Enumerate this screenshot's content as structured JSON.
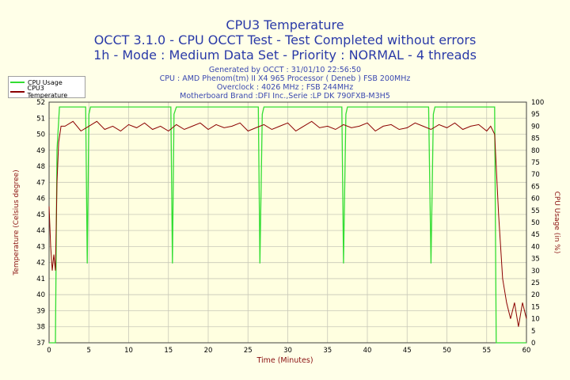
{
  "header": {
    "title": "CPU3 Temperature",
    "line2": "OCCT 3.1.0 - CPU OCCT Test - Test Completed without errors",
    "line3": "1h - Mode : Medium Data Set - Priority : NORMAL - 4 threads",
    "info": [
      "Generated by OCCT : 31/01/10 22:56:50",
      "CPU : AMD Phenom(tm) II X4 965 Processor ( Deneb ) FSB 200MHz",
      "Overclock : 4026 MHz ; FSB 244MHz",
      "Motherboard Brand :DFI Inc.,Serie :LP DK 790FXB-M3H5"
    ]
  },
  "chart_data": {
    "type": "line",
    "title": "CPU3 Temperature",
    "xlabel": "Time (Minutes)",
    "ylabel_left": "Temperature (Celsius degree)",
    "ylabel_right": "CPU Usage (in %)",
    "xlim": [
      0,
      60
    ],
    "ylim_left": [
      37,
      52
    ],
    "ylim_right": [
      0,
      100
    ],
    "x_ticks": [
      0,
      5,
      10,
      15,
      20,
      25,
      30,
      35,
      40,
      45,
      50,
      55,
      60
    ],
    "y_left_ticks": [
      37,
      38,
      39,
      40,
      41,
      42,
      43,
      44,
      45,
      46,
      47,
      48,
      49,
      50,
      51,
      52
    ],
    "y_right_ticks": [
      0,
      5,
      10,
      15,
      20,
      25,
      30,
      35,
      40,
      45,
      50,
      55,
      60,
      65,
      70,
      75,
      80,
      85,
      90,
      95,
      100
    ],
    "grid": true,
    "legend_placement": "top-left",
    "series": [
      {
        "name": "CPU Usage",
        "axis": "right",
        "color": "#33dd33",
        "x": [
          0,
          0.8,
          1.0,
          1.3,
          1.5,
          4.6,
          4.8,
          5.0,
          5.2,
          6.0,
          15.3,
          15.5,
          15.7,
          16.0,
          26.3,
          26.5,
          26.8,
          27.0,
          36.8,
          37.0,
          37.3,
          37.5,
          47.7,
          48.0,
          48.3,
          48.5,
          56.0,
          56.2,
          56.5,
          60
        ],
        "values": [
          0,
          0,
          80,
          98,
          98,
          98,
          33,
          95,
          98,
          98,
          98,
          33,
          95,
          98,
          98,
          33,
          95,
          98,
          98,
          33,
          95,
          98,
          98,
          33,
          95,
          98,
          98,
          0,
          0,
          0
        ]
      },
      {
        "name": "CPU3 Temperature",
        "axis": "left",
        "color": "#8b0000",
        "x": [
          0,
          0.2,
          0.4,
          0.6,
          0.8,
          1.0,
          1.2,
          1.5,
          2,
          3,
          4,
          5,
          6,
          7,
          8,
          9,
          10,
          11,
          12,
          13,
          14,
          15,
          16,
          17,
          18,
          19,
          20,
          21,
          22,
          23,
          24,
          25,
          26,
          27,
          28,
          29,
          30,
          31,
          32,
          33,
          34,
          35,
          36,
          37,
          38,
          39,
          40,
          41,
          42,
          43,
          44,
          45,
          46,
          47,
          48,
          49,
          50,
          51,
          52,
          53,
          54,
          55,
          55.5,
          56,
          56.5,
          57,
          57.5,
          58,
          58.5,
          59,
          59.5,
          60
        ],
        "values": [
          45.5,
          43,
          41.5,
          42.5,
          41.5,
          47,
          49.5,
          50.5,
          50.5,
          50.8,
          50.2,
          50.5,
          50.8,
          50.3,
          50.5,
          50.2,
          50.6,
          50.4,
          50.7,
          50.3,
          50.5,
          50.2,
          50.6,
          50.3,
          50.5,
          50.7,
          50.3,
          50.6,
          50.4,
          50.5,
          50.7,
          50.2,
          50.4,
          50.6,
          50.3,
          50.5,
          50.7,
          50.2,
          50.5,
          50.8,
          50.4,
          50.5,
          50.3,
          50.6,
          50.4,
          50.5,
          50.7,
          50.2,
          50.5,
          50.6,
          50.3,
          50.4,
          50.7,
          50.5,
          50.3,
          50.6,
          50.4,
          50.7,
          50.3,
          50.5,
          50.6,
          50.2,
          50.5,
          50.0,
          45,
          41,
          39.5,
          38.5,
          39.5,
          38,
          39.5,
          38.5
        ]
      }
    ]
  }
}
